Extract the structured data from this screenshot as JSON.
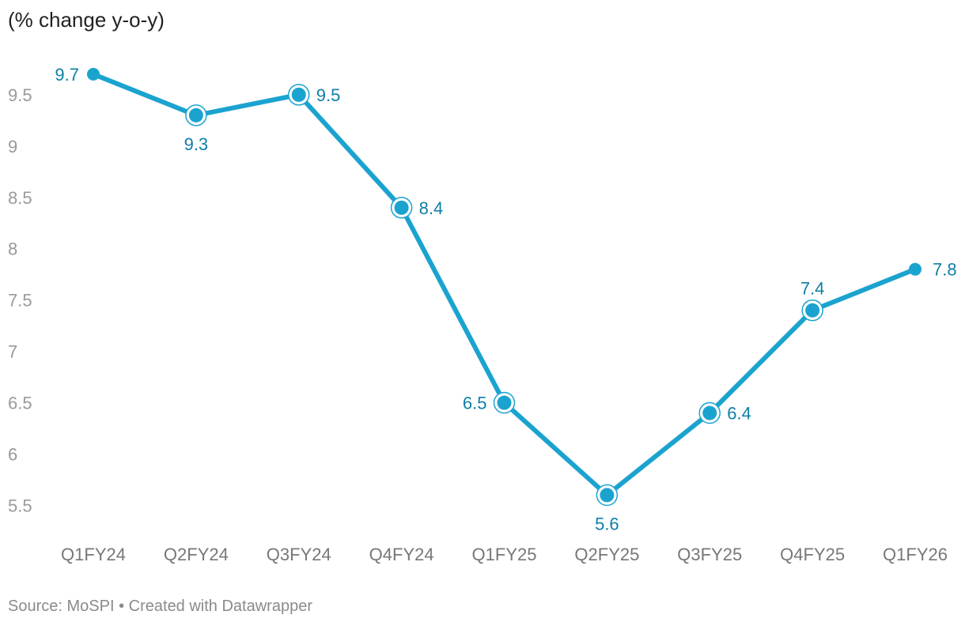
{
  "chart_data": {
    "type": "line",
    "ylabel": "(% change y-o-y)",
    "categories": [
      "Q1FY24",
      "Q2FY24",
      "Q3FY24",
      "Q4FY24",
      "Q1FY25",
      "Q2FY25",
      "Q3FY25",
      "Q4FY25",
      "Q1FY26"
    ],
    "series": [
      {
        "values": [
          9.7,
          9.3,
          9.5,
          8.4,
          6.5,
          5.6,
          6.4,
          7.4,
          7.8
        ]
      }
    ],
    "data_labels": [
      "9.7",
      "9.3",
      "9.5",
      "8.4",
      "6.5",
      "5.6",
      "6.4",
      "7.4",
      "7.8"
    ],
    "yticks": [
      "5.5",
      "6",
      "6.5",
      "7",
      "7.5",
      "8",
      "8.5",
      "9",
      "9.5"
    ],
    "ylim": [
      5.28,
      9.73
    ],
    "grid": false,
    "legend": "none",
    "line_color": "#1ba3cf",
    "label_color": "#0f7ea6"
  },
  "footer": {
    "source": "Source: MoSPI",
    "separator": "•",
    "credit": "Created with Datawrapper"
  }
}
